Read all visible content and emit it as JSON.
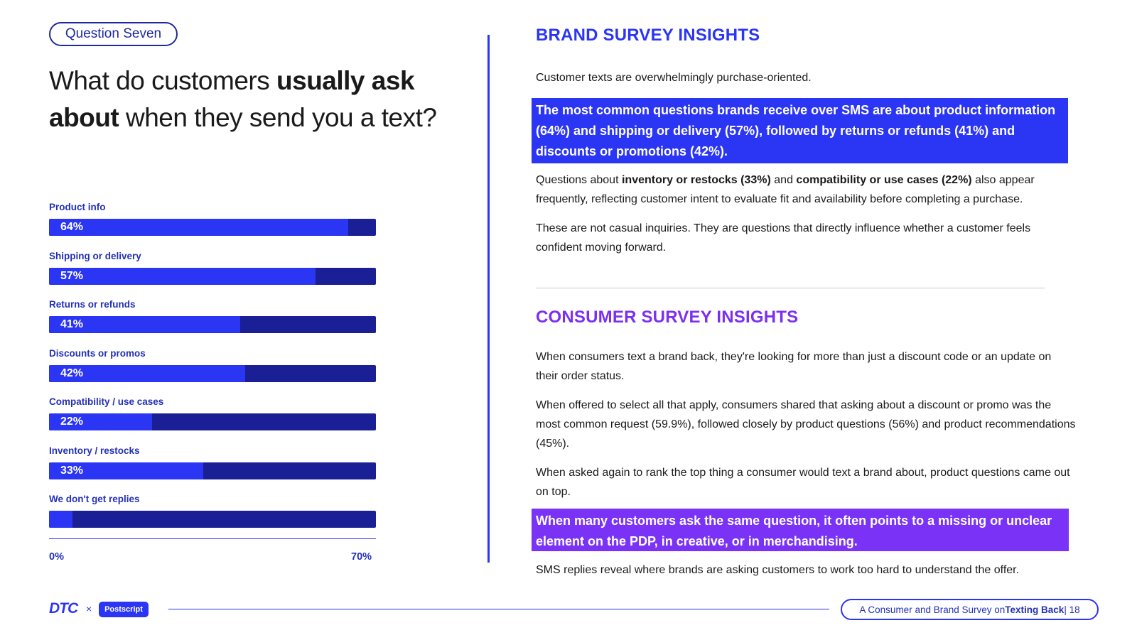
{
  "question_badge": "Question Seven",
  "headline": {
    "p1": "What do customers ",
    "b1": "usually ask about",
    "p2": " when they send you a text?"
  },
  "chart_data": {
    "type": "bar",
    "orientation": "horizontal",
    "categories": [
      "Product info",
      "Shipping or delivery",
      "Returns or refunds",
      "Discounts or promos",
      "Compatibility / use cases",
      "Inventory / restocks",
      "We don't get replies"
    ],
    "values": [
      64,
      57,
      41,
      42,
      22,
      33,
      5
    ],
    "value_labels": [
      "64%",
      "57%",
      "41%",
      "42%",
      "22%",
      "33%",
      ""
    ],
    "unit": "%",
    "xlim": [
      0,
      70
    ],
    "axis_ticks": [
      "0%",
      "70%"
    ],
    "fill_color": "#2B35F4",
    "track_color": "#1A1F96"
  },
  "brand": {
    "title": "BRAND SURVEY INSIGHTS",
    "p1": "Customer texts are overwhelmingly purchase-oriented.",
    "highlight": "The most common questions brands receive over SMS are about product information (64%) and shipping or delivery (57%), followed by returns or refunds (41%) and discounts or promotions (42%).",
    "p2a": "Questions about ",
    "p2b": "inventory or restocks (33%)",
    "p2c": " and ",
    "p2d": "compatibility or use cases (22%)",
    "p2e": " also appear frequently, reflecting customer intent to evaluate fit and availability before completing a purchase.",
    "p3": "These are not casual inquiries. They are questions that directly influence whether a customer feels confident moving forward."
  },
  "consumer": {
    "title": "CONSUMER SURVEY INSIGHTS",
    "p1": "When consumers text a brand back, they're looking for more than just a discount code or an update on their order status.",
    "p2": "When offered to select all that apply, consumers shared that asking about a discount or promo was the most common request (59.9%), followed closely by product questions (56%) and product recommendations (45%).",
    "p3": "When asked again to rank the top thing a consumer would text a brand about, product questions came out on top.",
    "highlight": "When many customers ask the same question, it often points to a missing or unclear element on the PDP, in creative, or in merchandising.",
    "p4": "SMS replies reveal where brands are asking customers to work too hard to understand the offer."
  },
  "footer": {
    "logo_dtc": "DTC",
    "logo_x": "×",
    "logo_postscript": "Postscript",
    "badge_pre": "A Consumer and Brand Survey on ",
    "badge_bold": "Texting Back",
    "badge_page": " | 18"
  },
  "colors": {
    "brand_blue": "#2B35F4",
    "navy": "#1A1F96",
    "purple": "#7A33F6"
  }
}
